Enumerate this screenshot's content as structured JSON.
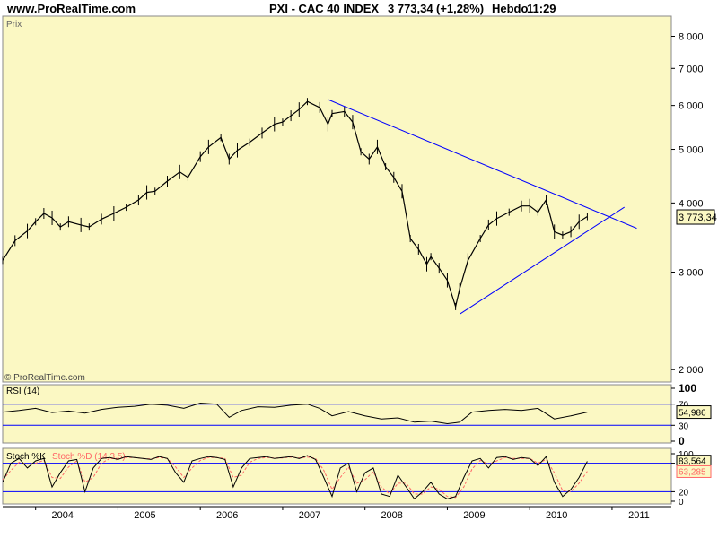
{
  "header": {
    "website": "www.ProRealTime.com",
    "title": "PXI - CAC 40 INDEX",
    "last_value": "3 773,34",
    "change": "(+1,28%)",
    "period": "Hebdo",
    "time": "11:29"
  },
  "colors": {
    "panel_bg": "#fbf8c3",
    "price_line": "#000000",
    "trendline": "#0000ff",
    "stoch_d": "#ff6666",
    "value_box_bg": "#fbf8c3"
  },
  "chart_data": [
    {
      "panel": "price",
      "type": "line",
      "title": "Prix",
      "watermark": "© ProRealTime.com",
      "y_scale": "log",
      "ylim": [
        1900,
        8700
      ],
      "y_ticks": [
        {
          "value": 2000,
          "label": "2 000"
        },
        {
          "value": 3000,
          "label": "3 000"
        },
        {
          "value": 4000,
          "label": "4 000"
        },
        {
          "value": 5000,
          "label": "5 000"
        },
        {
          "value": 6000,
          "label": "6 000"
        },
        {
          "value": 7000,
          "label": "7 000"
        },
        {
          "value": 8000,
          "label": "8 000"
        }
      ],
      "last_price_label": "3 773,34",
      "last_price": 3773.34,
      "series": [
        {
          "x": [
            2003.6,
            2003.75,
            2003.9,
            2004.0,
            2004.1,
            2004.2,
            2004.3,
            2004.4,
            2004.55,
            2004.65,
            2004.8,
            2004.95,
            2005.1,
            2005.25,
            2005.35,
            2005.45,
            2005.6,
            2005.75,
            2005.85,
            2006.0,
            2006.1,
            2006.25,
            2006.35,
            2006.45,
            2006.6,
            2006.75,
            2006.9,
            2007.0,
            2007.1,
            2007.2,
            2007.3,
            2007.45,
            2007.55,
            2007.6,
            2007.75,
            2007.85,
            2007.95,
            2008.05,
            2008.15,
            2008.25,
            2008.35,
            2008.45,
            2008.55,
            2008.65,
            2008.75,
            2008.8,
            2008.9,
            2009.0,
            2009.1,
            2009.15,
            2009.25,
            2009.4,
            2009.5,
            2009.6,
            2009.75,
            2009.9,
            2010.0,
            2010.1,
            2010.2,
            2010.3,
            2010.4,
            2010.5,
            2010.6,
            2010.7
          ],
          "values": [
            3150,
            3420,
            3560,
            3700,
            3830,
            3760,
            3620,
            3700,
            3650,
            3620,
            3740,
            3830,
            3930,
            4050,
            4180,
            4200,
            4380,
            4550,
            4450,
            4850,
            5050,
            5250,
            4800,
            4980,
            5150,
            5350,
            5550,
            5600,
            5750,
            5900,
            6100,
            5950,
            5550,
            5800,
            5850,
            5600,
            4950,
            4800,
            5050,
            4650,
            4450,
            4200,
            3450,
            3300,
            3100,
            3200,
            3050,
            2900,
            2600,
            2800,
            3150,
            3450,
            3650,
            3750,
            3850,
            3950,
            3950,
            3850,
            4050,
            3550,
            3500,
            3550,
            3700,
            3780
          ]
        }
      ],
      "trendlines": [
        {
          "from": [
            2007.55,
            6150
          ],
          "to": [
            2011.3,
            3600
          ]
        },
        {
          "from": [
            2009.15,
            2520
          ],
          "to": [
            2011.15,
            3930
          ]
        }
      ]
    },
    {
      "panel": "rsi",
      "type": "line",
      "title": "RSI (14)",
      "ylim": [
        0,
        100
      ],
      "y_ticks": [
        {
          "value": 0,
          "label": "0"
        },
        {
          "value": 30,
          "label": "30"
        },
        {
          "value": 70,
          "label": "70"
        },
        {
          "value": 100,
          "label": "100"
        }
      ],
      "levels": [
        30,
        70
      ],
      "last_value_label": "54,986",
      "last_value": 54.986,
      "series": [
        {
          "x": [
            2003.6,
            2003.8,
            2004.0,
            2004.2,
            2004.4,
            2004.6,
            2004.8,
            2005.0,
            2005.2,
            2005.4,
            2005.6,
            2005.8,
            2006.0,
            2006.2,
            2006.35,
            2006.5,
            2006.7,
            2006.9,
            2007.1,
            2007.3,
            2007.45,
            2007.6,
            2007.8,
            2008.0,
            2008.2,
            2008.4,
            2008.6,
            2008.8,
            2009.0,
            2009.15,
            2009.3,
            2009.5,
            2009.7,
            2009.9,
            2010.1,
            2010.3,
            2010.5,
            2010.7
          ],
          "values": [
            55,
            58,
            62,
            54,
            57,
            53,
            60,
            64,
            66,
            70,
            68,
            62,
            72,
            70,
            45,
            58,
            65,
            64,
            68,
            70,
            62,
            48,
            56,
            48,
            42,
            44,
            36,
            38,
            33,
            36,
            55,
            58,
            60,
            58,
            62,
            42,
            48,
            55
          ]
        }
      ]
    },
    {
      "panel": "stochastic",
      "type": "line",
      "title": "Stoch %K",
      "title_d": "Stoch %D (14,3,5)",
      "ylim": [
        0,
        100
      ],
      "y_ticks": [
        {
          "value": 0,
          "label": "0"
        },
        {
          "value": 20,
          "label": "20"
        },
        {
          "value": 80,
          "label": "80"
        },
        {
          "value": 100,
          "label": "100"
        }
      ],
      "levels": [
        20,
        80
      ],
      "last_k_label": "83,564",
      "last_d_label": "63,285",
      "last_k": 83.564,
      "last_d": 63.285,
      "series": [
        {
          "name": "Stoch %K",
          "x": [
            2003.6,
            2003.7,
            2003.8,
            2003.9,
            2004.0,
            2004.1,
            2004.2,
            2004.3,
            2004.4,
            2004.5,
            2004.6,
            2004.7,
            2004.8,
            2004.9,
            2005.0,
            2005.1,
            2005.2,
            2005.3,
            2005.4,
            2005.5,
            2005.6,
            2005.7,
            2005.8,
            2005.9,
            2006.0,
            2006.1,
            2006.2,
            2006.3,
            2006.4,
            2006.5,
            2006.6,
            2006.7,
            2006.8,
            2006.9,
            2007.0,
            2007.1,
            2007.2,
            2007.3,
            2007.4,
            2007.5,
            2007.6,
            2007.7,
            2007.8,
            2007.9,
            2008.0,
            2008.1,
            2008.2,
            2008.3,
            2008.4,
            2008.5,
            2008.6,
            2008.7,
            2008.8,
            2008.9,
            2009.0,
            2009.1,
            2009.2,
            2009.3,
            2009.4,
            2009.5,
            2009.6,
            2009.7,
            2009.8,
            2009.9,
            2010.0,
            2010.1,
            2010.2,
            2010.3,
            2010.4,
            2010.5,
            2010.6,
            2010.7
          ],
          "values": [
            40,
            80,
            90,
            70,
            85,
            90,
            30,
            60,
            85,
            88,
            20,
            70,
            90,
            92,
            88,
            94,
            92,
            90,
            88,
            94,
            90,
            60,
            40,
            85,
            90,
            94,
            92,
            88,
            30,
            70,
            90,
            92,
            94,
            90,
            92,
            94,
            90,
            96,
            88,
            50,
            10,
            70,
            80,
            20,
            60,
            70,
            15,
            10,
            55,
            30,
            5,
            20,
            40,
            15,
            5,
            10,
            50,
            85,
            90,
            70,
            92,
            94,
            88,
            92,
            90,
            75,
            94,
            40,
            10,
            25,
            50,
            84
          ]
        },
        {
          "name": "Stoch %D (14,3,5)",
          "x": [
            2003.6,
            2003.7,
            2003.8,
            2003.9,
            2004.0,
            2004.1,
            2004.2,
            2004.3,
            2004.4,
            2004.5,
            2004.6,
            2004.7,
            2004.8,
            2004.9,
            2005.0,
            2005.1,
            2005.2,
            2005.3,
            2005.4,
            2005.5,
            2005.6,
            2005.7,
            2005.8,
            2005.9,
            2006.0,
            2006.1,
            2006.2,
            2006.3,
            2006.4,
            2006.5,
            2006.6,
            2006.7,
            2006.8,
            2006.9,
            2007.0,
            2007.1,
            2007.2,
            2007.3,
            2007.4,
            2007.5,
            2007.6,
            2007.7,
            2007.8,
            2007.9,
            2008.0,
            2008.1,
            2008.2,
            2008.3,
            2008.4,
            2008.5,
            2008.6,
            2008.7,
            2008.8,
            2008.9,
            2009.0,
            2009.1,
            2009.2,
            2009.3,
            2009.4,
            2009.5,
            2009.6,
            2009.7,
            2009.8,
            2009.9,
            2010.0,
            2010.1,
            2010.2,
            2010.3,
            2010.4,
            2010.5,
            2010.6,
            2010.7
          ],
          "values": [
            45,
            65,
            82,
            78,
            80,
            86,
            50,
            48,
            72,
            85,
            40,
            50,
            80,
            90,
            90,
            92,
            92,
            90,
            89,
            92,
            90,
            72,
            50,
            70,
            86,
            92,
            92,
            90,
            50,
            55,
            82,
            90,
            92,
            91,
            91,
            93,
            91,
            93,
            90,
            65,
            25,
            50,
            72,
            38,
            45,
            62,
            30,
            15,
            38,
            38,
            15,
            15,
            30,
            25,
            10,
            8,
            30,
            68,
            86,
            78,
            85,
            92,
            90,
            90,
            90,
            80,
            88,
            60,
            22,
            20,
            38,
            63
          ]
        }
      ],
      "x_axis_labels": [
        {
          "x": 2004,
          "label": "2004"
        },
        {
          "x": 2005,
          "label": "2005"
        },
        {
          "x": 2006,
          "label": "2006"
        },
        {
          "x": 2007,
          "label": "2007"
        },
        {
          "x": 2008,
          "label": "2008"
        },
        {
          "x": 2009,
          "label": "2009"
        },
        {
          "x": 2010,
          "label": "2010"
        },
        {
          "x": 2011,
          "label": "2011"
        }
      ],
      "xlim": [
        2003.6,
        2011.72
      ]
    }
  ]
}
